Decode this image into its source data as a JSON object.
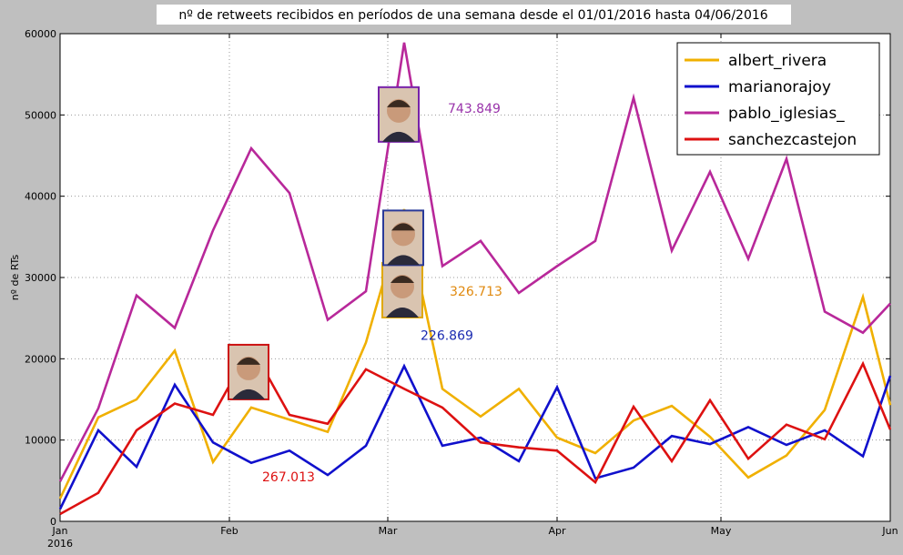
{
  "chart_data": {
    "type": "line",
    "title": "nº de retweets recibidos en períodos de una semana desde el 01/01/2016 hasta 04/06/2016",
    "xlabel": "",
    "ylabel": "nº de RTs",
    "ylim": [
      0,
      60000
    ],
    "xlim": [
      "2016-01-01",
      "2016-06-01"
    ],
    "grid": true,
    "legend_position": "top-right",
    "x_ticks": [
      {
        "date": "2016-01-01",
        "label": "Jan",
        "sublabel": "2016"
      },
      {
        "date": "2016-02-01",
        "label": "Feb",
        "sublabel": ""
      },
      {
        "date": "2016-03-01",
        "label": "Mar",
        "sublabel": ""
      },
      {
        "date": "2016-04-01",
        "label": "Apr",
        "sublabel": ""
      },
      {
        "date": "2016-05-01",
        "label": "May",
        "sublabel": ""
      },
      {
        "date": "2016-06-01",
        "label": "Jun",
        "sublabel": ""
      }
    ],
    "y_ticks": [
      0,
      10000,
      20000,
      30000,
      40000,
      50000,
      60000
    ],
    "x": [
      "2016-01-01",
      "2016-01-08",
      "2016-01-15",
      "2016-01-22",
      "2016-01-29",
      "2016-02-05",
      "2016-02-12",
      "2016-02-19",
      "2016-02-26",
      "2016-03-04",
      "2016-03-11",
      "2016-03-18",
      "2016-03-25",
      "2016-04-01",
      "2016-04-08",
      "2016-04-15",
      "2016-04-22",
      "2016-04-29",
      "2016-05-06",
      "2016-05-13",
      "2016-05-20",
      "2016-05-27",
      "2016-06-01"
    ],
    "series": [
      {
        "name": "albert_rivera",
        "color": "#f0b000",
        "values": [
          2800,
          12800,
          15000,
          21000,
          7300,
          14000,
          12500,
          11000,
          22000,
          38400,
          16300,
          12900,
          16300,
          10300,
          8400,
          12400,
          14200,
          10400,
          5400,
          8100,
          13700,
          27600,
          14300
        ]
      },
      {
        "name": "marianorajoy",
        "color": "#1010cc",
        "values": [
          1500,
          11200,
          6700,
          16800,
          9700,
          7200,
          8700,
          5700,
          9300,
          19100,
          9300,
          10300,
          7400,
          16500,
          5300,
          6600,
          10500,
          9500,
          11600,
          9400,
          11200,
          8000,
          17900
        ]
      },
      {
        "name": "pablo_iglesias_",
        "color": "#b8289a",
        "values": [
          4900,
          13900,
          27800,
          23800,
          35800,
          45900,
          40400,
          24800,
          28300,
          58900,
          31400,
          34500,
          28100,
          31400,
          34500,
          52100,
          33300,
          43000,
          32300,
          44600,
          25800,
          23200,
          26800
        ]
      },
      {
        "name": "sanchezcastejon",
        "color": "#dd1111",
        "values": [
          900,
          3500,
          11200,
          14500,
          13100,
          21500,
          13100,
          12000,
          18700,
          16300,
          14000,
          9700,
          9100,
          8700,
          4800,
          14100,
          7400,
          14900,
          7700,
          11900,
          10100,
          19400,
          11300
        ]
      }
    ],
    "annotations": [
      {
        "series": "pablo_iglesias_",
        "text": "743.849",
        "color": "#9933aa",
        "photo_frame": "#7722aa",
        "photo_name": "pablo-iglesias-photo"
      },
      {
        "series": "albert_rivera",
        "text": "326.713",
        "color": "#e08a10",
        "photo_frame": "#e0a800",
        "photo_name": "albert-rivera-photo"
      },
      {
        "series": "sanchezcastejon",
        "text": "267.013",
        "color": "#dd1111",
        "photo_frame": "#cc1111",
        "photo_name": "pedro-sanchez-photo"
      },
      {
        "series": "marianorajoy",
        "text": "226.869",
        "color": "#1a2ab0",
        "photo_frame": "#2a3a99",
        "photo_name": "mariano-rajoy-photo"
      }
    ]
  }
}
